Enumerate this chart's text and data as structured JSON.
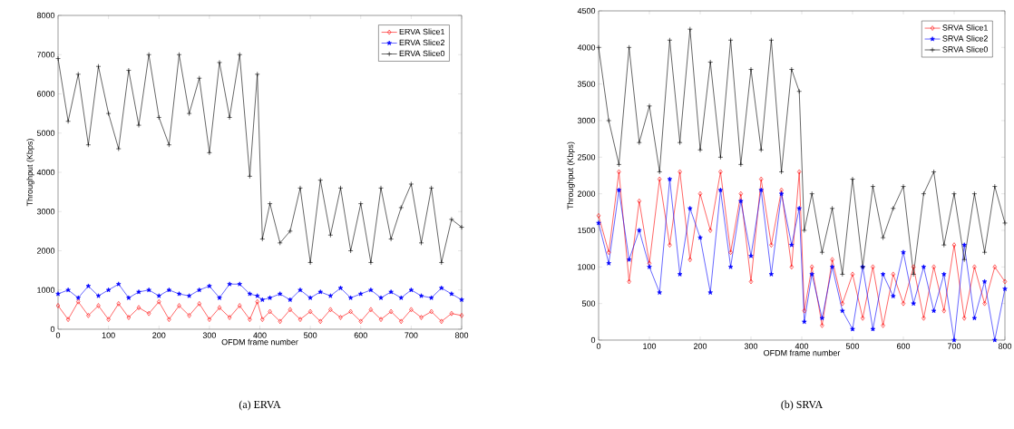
{
  "chart_data": [
    {
      "type": "line",
      "title": "(a) ERVA",
      "xlabel": "OFDM frame number",
      "ylabel": "Throughput (Kbps)",
      "x": [
        0,
        20,
        40,
        60,
        80,
        100,
        120,
        140,
        160,
        180,
        200,
        220,
        240,
        260,
        280,
        300,
        320,
        340,
        360,
        380,
        395,
        405,
        420,
        440,
        460,
        480,
        500,
        520,
        540,
        560,
        580,
        600,
        620,
        640,
        660,
        680,
        700,
        720,
        740,
        760,
        780,
        800
      ],
      "series": [
        {
          "name": "ERVA Slice1",
          "color": "#ff0000",
          "marker": "diamond",
          "values": [
            600,
            250,
            700,
            350,
            600,
            250,
            650,
            300,
            550,
            400,
            700,
            250,
            600,
            350,
            650,
            250,
            550,
            300,
            600,
            250,
            700,
            250,
            450,
            200,
            500,
            250,
            450,
            200,
            500,
            300,
            450,
            200,
            500,
            250,
            450,
            200,
            500,
            300,
            450,
            200,
            400,
            350
          ]
        },
        {
          "name": "ERVA Slice2",
          "color": "#0000ff",
          "marker": "star",
          "values": [
            900,
            1000,
            800,
            1100,
            850,
            1000,
            1150,
            800,
            950,
            1000,
            850,
            1000,
            900,
            850,
            1000,
            1100,
            800,
            1150,
            1150,
            900,
            850,
            750,
            800,
            900,
            750,
            1000,
            800,
            950,
            850,
            1050,
            800,
            900,
            1000,
            800,
            950,
            800,
            1000,
            850,
            800,
            1050,
            900,
            750
          ]
        },
        {
          "name": "ERVA Slice0",
          "color": "#000000",
          "marker": "cross",
          "values": [
            6900,
            5300,
            6500,
            4700,
            6700,
            5500,
            4600,
            6600,
            5200,
            7000,
            5400,
            4700,
            7000,
            5500,
            6400,
            4500,
            6800,
            5400,
            7000,
            3900,
            6500,
            2300,
            3200,
            2200,
            2500,
            3600,
            1700,
            3800,
            2400,
            3600,
            2000,
            3200,
            1700,
            3600,
            2300,
            3100,
            3700,
            2200,
            3600,
            1700,
            2800,
            2600
          ]
        }
      ],
      "xlim": [
        0,
        800
      ],
      "xticks": [
        0,
        100,
        200,
        300,
        400,
        500,
        600,
        700,
        800
      ],
      "ylim": [
        0,
        8000
      ],
      "yticks": [
        0,
        1000,
        2000,
        3000,
        4000,
        5000,
        6000,
        7000,
        8000
      ],
      "legend": "top right",
      "grid": false
    },
    {
      "type": "line",
      "title": "(b) SRVA",
      "xlabel": "OFDM frame number",
      "ylabel": "Throughput (Kbps)",
      "x": [
        0,
        20,
        40,
        60,
        80,
        100,
        120,
        140,
        160,
        180,
        200,
        220,
        240,
        260,
        280,
        300,
        320,
        340,
        360,
        380,
        395,
        405,
        420,
        440,
        460,
        480,
        500,
        520,
        540,
        560,
        580,
        600,
        620,
        640,
        660,
        680,
        700,
        720,
        740,
        760,
        780,
        800
      ],
      "series": [
        {
          "name": "SRVA Slice1",
          "color": "#ff0000",
          "marker": "diamond",
          "values": [
            1700,
            1200,
            2300,
            800,
            1900,
            1050,
            2200,
            1300,
            2300,
            1100,
            2000,
            1500,
            2300,
            1200,
            2000,
            800,
            2200,
            1300,
            2050,
            1000,
            2300,
            400,
            1000,
            200,
            1100,
            500,
            900,
            300,
            1000,
            200,
            900,
            500,
            1000,
            300,
            1000,
            400,
            1300,
            300,
            1000,
            500,
            1000,
            800
          ]
        },
        {
          "name": "SRVA Slice2",
          "color": "#0000ff",
          "marker": "star",
          "values": [
            1600,
            1050,
            2050,
            1100,
            1500,
            1000,
            650,
            2200,
            900,
            1800,
            1400,
            650,
            2050,
            1000,
            1900,
            1150,
            2050,
            900,
            2000,
            1300,
            1800,
            250,
            900,
            300,
            1000,
            400,
            150,
            1000,
            150,
            900,
            600,
            1200,
            500,
            1000,
            400,
            900,
            0,
            1300,
            300,
            800,
            0,
            700
          ]
        },
        {
          "name": "SRVA Slice0",
          "color": "#000000",
          "marker": "cross",
          "values": [
            4000,
            3000,
            2400,
            4000,
            2700,
            3200,
            2300,
            4100,
            2700,
            4250,
            2600,
            3800,
            2500,
            4100,
            2400,
            3700,
            2600,
            4100,
            2300,
            3700,
            3400,
            1500,
            2000,
            1200,
            1800,
            900,
            2200,
            1000,
            2100,
            1400,
            1800,
            2100,
            900,
            2000,
            2300,
            1300,
            2000,
            1100,
            2000,
            1200,
            2100,
            1600
          ]
        }
      ],
      "xlim": [
        0,
        800
      ],
      "xticks": [
        0,
        100,
        200,
        300,
        400,
        500,
        600,
        700,
        800
      ],
      "ylim": [
        0,
        4500
      ],
      "yticks": [
        0,
        500,
        1000,
        1500,
        2000,
        2500,
        3000,
        3500,
        4000,
        4500
      ],
      "legend": "top right",
      "grid": false
    }
  ]
}
